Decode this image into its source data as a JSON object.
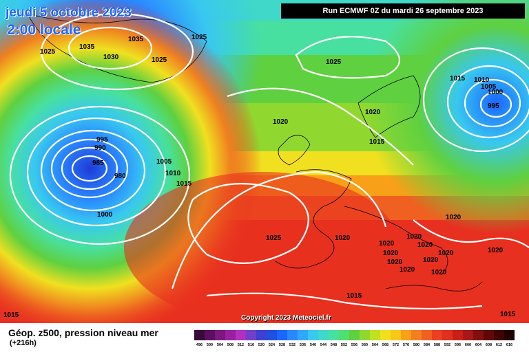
{
  "header": {
    "date_line": "jeudi 5 octobre 2023",
    "time_line": "2:00 locale",
    "run_info": "Run ECMWF 0Z du mardi 26 septembre 2023"
  },
  "copyright": "Copyright 2023 Meteociel.fr",
  "footer": {
    "title": "Géop. z500, pression niveau mer",
    "subtitle": "(+216h)"
  },
  "colors": {
    "deep_purple": "#6a2a8a",
    "blue": "#1a66ff",
    "cyan": "#38c8f0",
    "green": "#5fd040",
    "yellow": "#f0e020",
    "orange": "#f08020",
    "red": "#e83020"
  },
  "scale": {
    "values": [
      "496",
      "500",
      "504",
      "508",
      "512",
      "516",
      "520",
      "524",
      "528",
      "532",
      "536",
      "540",
      "544",
      "548",
      "552",
      "556",
      "560",
      "564",
      "568",
      "572",
      "576",
      "580",
      "584",
      "588",
      "592",
      "596",
      "600",
      "604",
      "608",
      "612",
      "616"
    ],
    "colors": [
      "#3a0a3a",
      "#5a1060",
      "#7a1880",
      "#9a20a0",
      "#b030c0",
      "#7040c8",
      "#4040d0",
      "#2050e0",
      "#1a66ff",
      "#2a88ff",
      "#30a8f8",
      "#38c8f0",
      "#40d8c8",
      "#48e0a0",
      "#50e070",
      "#5fd040",
      "#90d830",
      "#c0e020",
      "#f0e020",
      "#f8c818",
      "#f8a018",
      "#f08020",
      "#f06020",
      "#e84020",
      "#e03020",
      "#c82018",
      "#a81818",
      "#801010",
      "#600808",
      "#400404",
      "#200000"
    ]
  },
  "pressure_labels": [
    "1025",
    "1035",
    "1030",
    "1035",
    "1025",
    "1025",
    "1025",
    "1015",
    "1010",
    "1005",
    "1000",
    "995",
    "1020",
    "1015",
    "995",
    "990",
    "985",
    "980",
    "1005",
    "1010",
    "1015",
    "1000",
    "1020",
    "1025",
    "1020",
    "1020",
    "1020",
    "1020",
    "1020",
    "1020",
    "1020",
    "1020",
    "1020",
    "1020",
    "1020",
    "1020",
    "1015",
    "1015"
  ]
}
